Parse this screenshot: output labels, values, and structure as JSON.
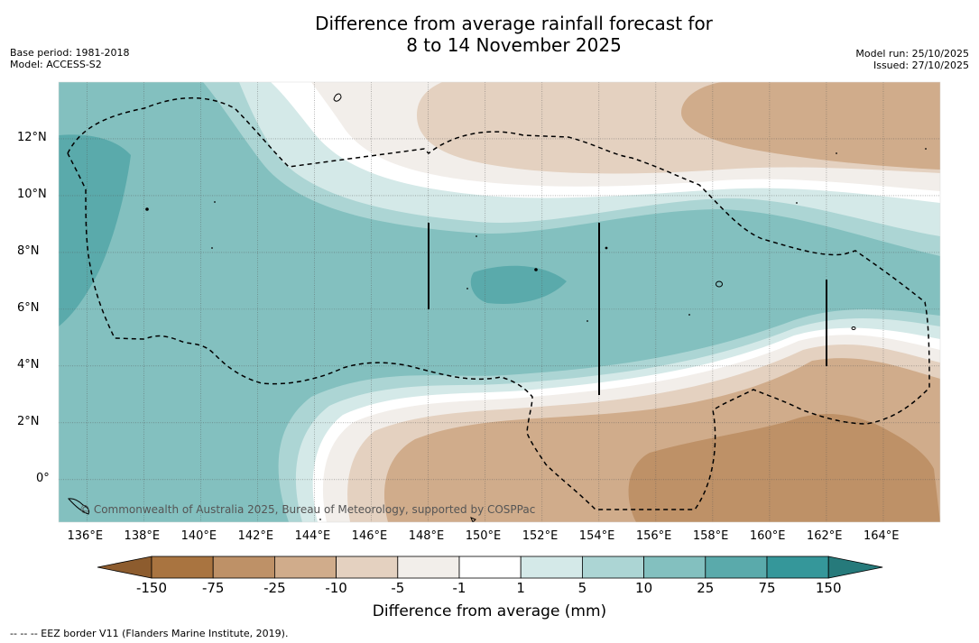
{
  "title_line1": "Difference from average rainfall forecast for",
  "title_line2": "8 to 14 November 2025",
  "base_period": "Base period: 1981-2018",
  "model": "Model: ACCESS-S2",
  "model_run": "Model run: 25/10/2025",
  "issued": "Issued: 27/10/2025",
  "copyright": "© Commonwealth of Australia 2025, Bureau of Meteorology, supported by COSPPac",
  "colorbar_title": "Difference from average (mm)",
  "footnote": "--  --  -- EEZ border V11 (Flanders Marine Institute, 2019).",
  "colorbar_ticks": [
    "-150",
    "-75",
    "-25",
    "-10",
    "-5",
    "-1",
    "1",
    "5",
    "10",
    "25",
    "75",
    "150"
  ],
  "colorbar_colors": [
    "#a97440",
    "#be9167",
    "#d0ac8b",
    "#e4d1c0",
    "#f2eeea",
    "#ffffff",
    "#d4e9e8",
    "#acd5d4",
    "#83c0bf",
    "#5aaaab",
    "#35979a"
  ],
  "colorbar_under_color": "#8d5c2e",
  "colorbar_over_color": "#267a7b",
  "x_tick_labels": [
    "136°E",
    "138°E",
    "140°E",
    "142°E",
    "144°E",
    "146°E",
    "148°E",
    "150°E",
    "152°E",
    "154°E",
    "156°E",
    "158°E",
    "160°E",
    "162°E",
    "164°E"
  ],
  "y_tick_labels": [
    "12°N",
    "10°N",
    "8°N",
    "6°N",
    "4°N",
    "2°N",
    "0°"
  ],
  "map_extent": {
    "lon_min": 135,
    "lon_max": 166,
    "lat_min": -1.5,
    "lat_max": 14
  }
}
